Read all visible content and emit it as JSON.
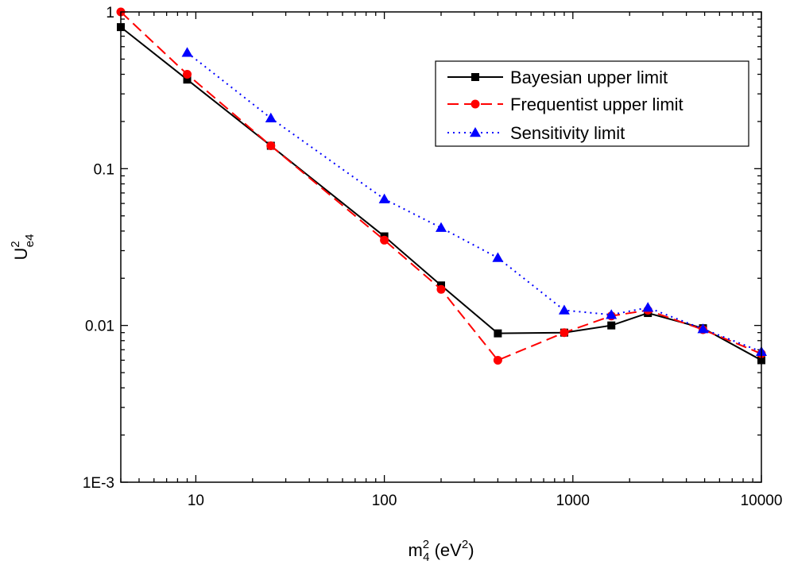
{
  "chart_data": {
    "type": "line",
    "title": "",
    "xlabel": {
      "base": "m",
      "sup": "2",
      "sub": "4",
      "rest": " (eV",
      "rest_sup": "2",
      "close": ")"
    },
    "ylabel": {
      "base": "U",
      "sup": "2",
      "sub": "e4"
    },
    "xscale": "log",
    "yscale": "log",
    "xlim": [
      4,
      10000
    ],
    "ylim": [
      0.001,
      1
    ],
    "x_ticks": [
      {
        "value": 10,
        "label": "10"
      },
      {
        "value": 100,
        "label": "100"
      },
      {
        "value": 1000,
        "label": "1000"
      },
      {
        "value": 10000,
        "label": "10000"
      }
    ],
    "y_ticks": [
      {
        "value": 0.001,
        "label": "1E-3"
      },
      {
        "value": 0.01,
        "label": "0.01"
      },
      {
        "value": 0.1,
        "label": "0.1"
      },
      {
        "value": 1,
        "label": "1"
      }
    ],
    "legend_position": "top-right",
    "series": [
      {
        "name": "Bayesian upper limit",
        "color": "#000000",
        "dash": "solid",
        "marker": "square",
        "x": [
          4,
          9,
          25,
          100,
          200,
          400,
          900,
          1600,
          2500,
          4900,
          10000
        ],
        "y": [
          0.8,
          0.37,
          0.14,
          0.037,
          0.018,
          0.0089,
          0.009,
          0.01,
          0.012,
          0.0096,
          0.006
        ]
      },
      {
        "name": "Frequentist upper limit",
        "color": "#ff0000",
        "dash": "dashed",
        "marker": "circle",
        "x": [
          4,
          9,
          25,
          100,
          200,
          400,
          900,
          1600,
          2500,
          4900,
          10000
        ],
        "y": [
          1.0,
          0.4,
          0.14,
          0.035,
          0.017,
          0.006,
          0.009,
          0.0115,
          0.0125,
          0.0094,
          0.0066
        ]
      },
      {
        "name": "Sensitivity limit",
        "color": "#0000ff",
        "dash": "dotted",
        "marker": "triangle",
        "x": [
          9,
          25,
          100,
          200,
          400,
          900,
          1600,
          2500,
          4900,
          10000
        ],
        "y": [
          0.55,
          0.21,
          0.064,
          0.042,
          0.027,
          0.0125,
          0.0117,
          0.013,
          0.0095,
          0.0068
        ]
      }
    ]
  }
}
